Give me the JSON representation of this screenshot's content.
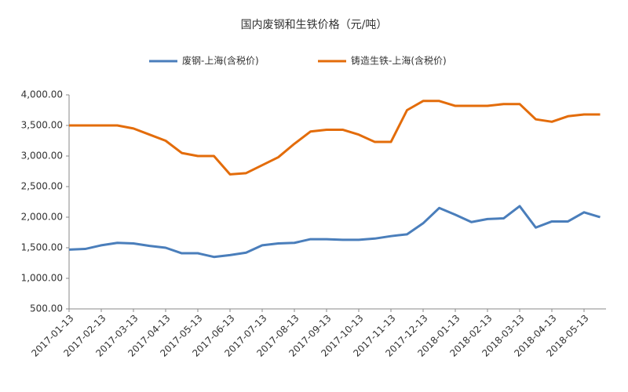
{
  "chart_data": {
    "type": "line",
    "title": "国内废钢和生铁价格（元/吨）",
    "categories": [
      "2017-01-13",
      null,
      "2017-02-13",
      null,
      "2017-03-13",
      null,
      "2017-04-13",
      null,
      "2017-05-13",
      null,
      "2017-06-13",
      null,
      "2017-07-13",
      null,
      "2017-08-13",
      null,
      "2017-09-13",
      null,
      "2017-10-13",
      null,
      "2017-11-13",
      null,
      "2017-12-13",
      null,
      "2018-01-13",
      null,
      "2018-02-13",
      null,
      "2018-03-13",
      null,
      "2018-04-13",
      null,
      "2018-05-13",
      null
    ],
    "series": [
      {
        "name": "废钢-上海(含税价)",
        "color": "#4a7ebb",
        "values": [
          1470,
          1480,
          1540,
          1580,
          1570,
          1530,
          1500,
          1410,
          1410,
          1350,
          1380,
          1420,
          1540,
          1570,
          1580,
          1640,
          1640,
          1630,
          1630,
          1650,
          1690,
          1720,
          1900,
          2150,
          2040,
          1920,
          1970,
          1980,
          2180,
          1830,
          1930,
          1930,
          2080,
          2000
        ]
      },
      {
        "name": "铸造生铁-上海(含税价)",
        "color": "#e36c0a",
        "values": [
          3500,
          3500,
          3500,
          3500,
          3450,
          3350,
          3250,
          3050,
          3000,
          3000,
          2700,
          2720,
          2850,
          2980,
          3200,
          3400,
          3430,
          3430,
          3350,
          3230,
          3230,
          3750,
          3900,
          3900,
          3820,
          3820,
          3820,
          3850,
          3850,
          3600,
          3560,
          3650,
          3680,
          3680
        ]
      }
    ],
    "ylim": [
      500,
      4000
    ],
    "yticks": [
      {
        "value": 500,
        "label": "500.00"
      },
      {
        "value": 1000,
        "label": "1,000.00"
      },
      {
        "value": 1500,
        "label": "1,500.00"
      },
      {
        "value": 2000,
        "label": "2,000.00"
      },
      {
        "value": 2500,
        "label": "2,500.00"
      },
      {
        "value": 3000,
        "label": "3,000.00"
      },
      {
        "value": 3500,
        "label": "3,500.00"
      },
      {
        "value": 4000,
        "label": "4,000.00"
      }
    ],
    "legend": "top"
  }
}
